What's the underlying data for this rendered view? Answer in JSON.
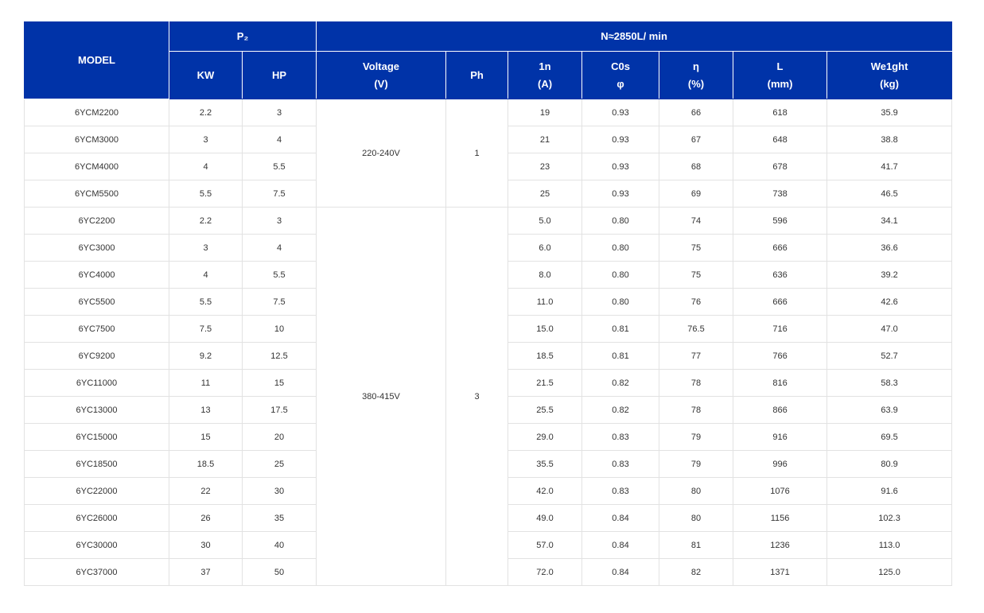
{
  "header": {
    "model": "MODEL",
    "p2": "P₂",
    "speed": "N≈2850L/ min",
    "kw": "KW",
    "hp": "HP",
    "voltage": [
      "Voltage",
      "(V)"
    ],
    "ph": "Ph",
    "current": [
      "1n",
      "(A)"
    ],
    "cos": [
      "C0s",
      "φ"
    ],
    "eff": [
      "η",
      "(%)"
    ],
    "length": [
      "L",
      "(mm)"
    ],
    "weight": [
      "We1ght",
      "(kg)"
    ]
  },
  "groups": [
    {
      "voltage": "220-240V",
      "ph": "1"
    },
    {
      "voltage": "380-415V",
      "ph": "3"
    }
  ],
  "rows": [
    {
      "model": "6YCM2200",
      "kw": "2.2",
      "hp": "3",
      "current": "19",
      "cos": "0.93",
      "eff": "66",
      "length": "618",
      "weight": "35.9"
    },
    {
      "model": "6YCM3000",
      "kw": "3",
      "hp": "4",
      "current": "21",
      "cos": "0.93",
      "eff": "67",
      "length": "648",
      "weight": "38.8"
    },
    {
      "model": "6YCM4000",
      "kw": "4",
      "hp": "5.5",
      "current": "23",
      "cos": "0.93",
      "eff": "68",
      "length": "678",
      "weight": "41.7"
    },
    {
      "model": "6YCM5500",
      "kw": "5.5",
      "hp": "7.5",
      "current": "25",
      "cos": "0.93",
      "eff": "69",
      "length": "738",
      "weight": "46.5"
    },
    {
      "model": "6YC2200",
      "kw": "2.2",
      "hp": "3",
      "current": "5.0",
      "cos": "0.80",
      "eff": "74",
      "length": "596",
      "weight": "34.1"
    },
    {
      "model": "6YC3000",
      "kw": "3",
      "hp": "4",
      "current": "6.0",
      "cos": "0.80",
      "eff": "75",
      "length": "666",
      "weight": "36.6"
    },
    {
      "model": "6YC4000",
      "kw": "4",
      "hp": "5.5",
      "current": "8.0",
      "cos": "0.80",
      "eff": "75",
      "length": "636",
      "weight": "39.2"
    },
    {
      "model": "6YC5500",
      "kw": "5.5",
      "hp": "7.5",
      "current": "11.0",
      "cos": "0.80",
      "eff": "76",
      "length": "666",
      "weight": "42.6"
    },
    {
      "model": "6YC7500",
      "kw": "7.5",
      "hp": "10",
      "current": "15.0",
      "cos": "0.81",
      "eff": "76.5",
      "length": "716",
      "weight": "47.0"
    },
    {
      "model": "6YC9200",
      "kw": "9.2",
      "hp": "12.5",
      "current": "18.5",
      "cos": "0.81",
      "eff": "77",
      "length": "766",
      "weight": "52.7"
    },
    {
      "model": "6YC11000",
      "kw": "11",
      "hp": "15",
      "current": "21.5",
      "cos": "0.82",
      "eff": "78",
      "length": "816",
      "weight": "58.3"
    },
    {
      "model": "6YC13000",
      "kw": "13",
      "hp": "17.5",
      "current": "25.5",
      "cos": "0.82",
      "eff": "78",
      "length": "866",
      "weight": "63.9"
    },
    {
      "model": "6YC15000",
      "kw": "15",
      "hp": "20",
      "current": "29.0",
      "cos": "0.83",
      "eff": "79",
      "length": "916",
      "weight": "69.5"
    },
    {
      "model": "6YC18500",
      "kw": "18.5",
      "hp": "25",
      "current": "35.5",
      "cos": "0.83",
      "eff": "79",
      "length": "996",
      "weight": "80.9"
    },
    {
      "model": "6YC22000",
      "kw": "22",
      "hp": "30",
      "current": "42.0",
      "cos": "0.83",
      "eff": "80",
      "length": "1076",
      "weight": "91.6"
    },
    {
      "model": "6YC26000",
      "kw": "26",
      "hp": "35",
      "current": "49.0",
      "cos": "0.84",
      "eff": "80",
      "length": "1156",
      "weight": "102.3"
    },
    {
      "model": "6YC30000",
      "kw": "30",
      "hp": "40",
      "current": "57.0",
      "cos": "0.84",
      "eff": "81",
      "length": "1236",
      "weight": "113.0"
    },
    {
      "model": "6YC37000",
      "kw": "37",
      "hp": "50",
      "current": "72.0",
      "cos": "0.84",
      "eff": "82",
      "length": "1371",
      "weight": "125.0"
    }
  ],
  "colors": {
    "header_bg": "#0033a8",
    "header_text": "#ffffff",
    "cell_border": "#e2e2e2",
    "cell_text": "#333333"
  }
}
